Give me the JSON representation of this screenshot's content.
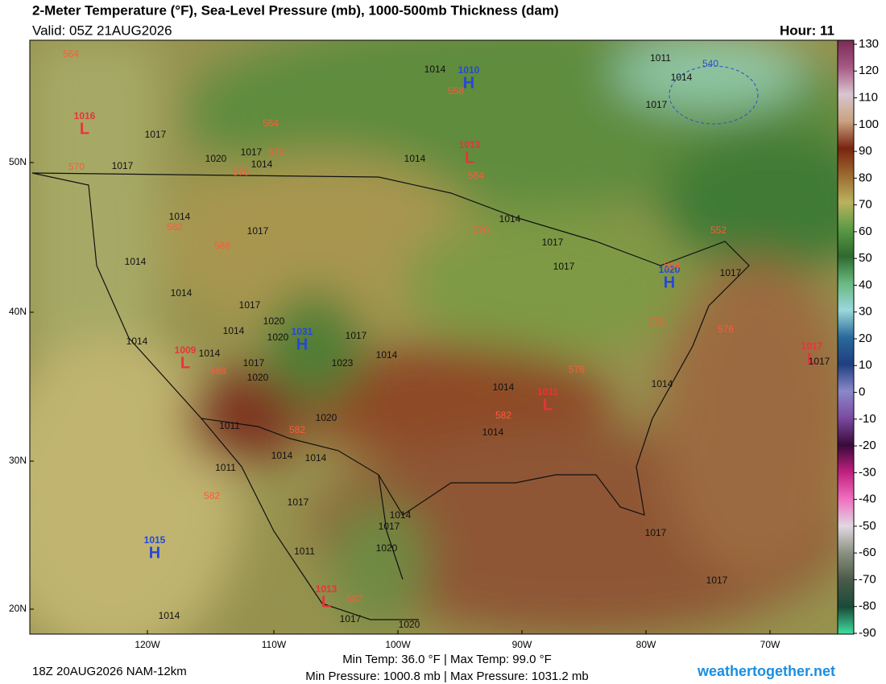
{
  "header": {
    "title": "2-Meter Temperature (°F), Sea-Level Pressure (mb), 1000-500mb Thickness (dam)",
    "valid": "Valid: 05Z 21AUG2026",
    "hour": "Hour: 11"
  },
  "map": {
    "lat_labels": [
      "50N",
      "40N",
      "30N",
      "20N"
    ],
    "lon_labels": [
      "120W",
      "110W",
      "100W",
      "90W",
      "80W",
      "70W"
    ],
    "centers": [
      {
        "kind": "L",
        "pressure": "1016"
      },
      {
        "kind": "H",
        "pressure": "1010"
      },
      {
        "kind": "L",
        "pressure": "1013"
      },
      {
        "kind": "H",
        "pressure": "1031"
      },
      {
        "kind": "L",
        "pressure": "1009"
      },
      {
        "kind": "H",
        "pressure": "1020"
      },
      {
        "kind": "L",
        "pressure": "1011"
      },
      {
        "kind": "L",
        "pressure": "1017"
      },
      {
        "kind": "H",
        "pressure": "1015"
      },
      {
        "kind": "L",
        "pressure": "1013"
      }
    ],
    "isobar_labels": [
      "1014",
      "1014",
      "1011",
      "1017",
      "1017",
      "1017",
      "1020",
      "1017",
      "1014",
      "1014",
      "1014",
      "1017",
      "1014",
      "1014",
      "1017",
      "1014",
      "1020",
      "1020",
      "1014",
      "1014",
      "1017",
      "1017",
      "1014",
      "1023",
      "1020",
      "1020",
      "1011",
      "1014",
      "1014",
      "1014",
      "1014",
      "1014",
      "1014",
      "1017",
      "1017",
      "1017",
      "1017",
      "1011",
      "1017",
      "1014",
      "1017",
      "1020",
      "1011",
      "1017",
      "1017",
      "1014",
      "1017",
      "1020"
    ],
    "thickness_labels": [
      "564",
      "558",
      "564",
      "570",
      "570",
      "576",
      "564",
      "582",
      "588",
      "570",
      "552",
      "564",
      "570",
      "576",
      "588",
      "576",
      "582",
      "582",
      "582",
      "582",
      "540"
    ]
  },
  "colorbar": {
    "ticks": [
      130,
      120,
      110,
      100,
      90,
      80,
      70,
      60,
      50,
      40,
      30,
      20,
      10,
      0,
      -10,
      -20,
      -30,
      -40,
      -50,
      -60,
      -70,
      -80,
      -90
    ],
    "colors": [
      "#7a2a55",
      "#a65a85",
      "#d9c5d0",
      "#c8a37f",
      "#7a2410",
      "#9c6a30",
      "#b9b25d",
      "#5a9a45",
      "#2e6a2e",
      "#6ab880",
      "#9ad8dc",
      "#2a6a9a",
      "#1f3f80",
      "#8a88c8",
      "#7a4aa0",
      "#3a0a3a",
      "#c02080",
      "#f070c0",
      "#e0d8e0",
      "#8a9080",
      "#4a5a48",
      "#1a4a3a",
      "#40e0a0"
    ]
  },
  "footer": {
    "run": "18Z 20AUG2026 NAM-12km",
    "temps": "Min Temp:  36.0 °F | Max Temp:  99.0 °F",
    "pressures": "Min Pressure: 1000.8 mb | Max Pressure: 1031.2 mb",
    "site": "weathertogether.net"
  }
}
